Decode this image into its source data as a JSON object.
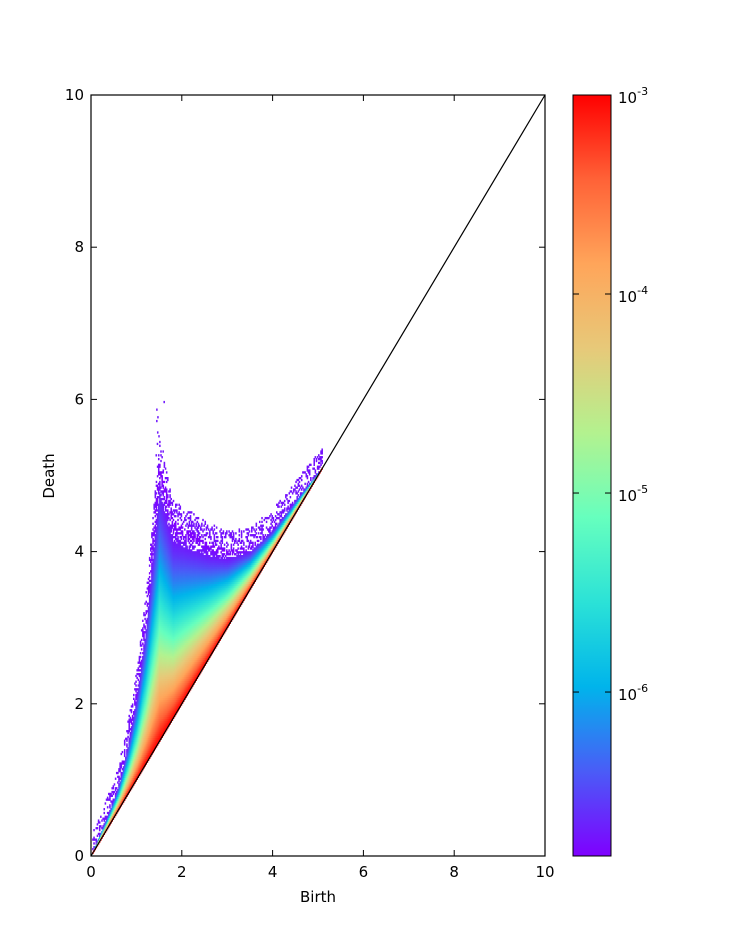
{
  "chart_data": {
    "type": "heatmap",
    "title": "",
    "xlabel": "Birth",
    "ylabel": "Death",
    "xlim": [
      0,
      10
    ],
    "ylim": [
      0,
      10
    ],
    "x_ticks": [
      {
        "value": 0,
        "label": "0"
      },
      {
        "value": 2,
        "label": "2"
      },
      {
        "value": 4,
        "label": "4"
      },
      {
        "value": 6,
        "label": "6"
      },
      {
        "value": 8,
        "label": "8"
      },
      {
        "value": 10,
        "label": "10"
      }
    ],
    "y_ticks": [
      {
        "value": 0,
        "label": "0"
      },
      {
        "value": 2,
        "label": "2"
      },
      {
        "value": 4,
        "label": "4"
      },
      {
        "value": 6,
        "label": "6"
      },
      {
        "value": 8,
        "label": "8"
      },
      {
        "value": 10,
        "label": "10"
      }
    ],
    "grid": false,
    "diagonal_line": {
      "from": [
        0,
        0
      ],
      "to": [
        10,
        10
      ],
      "color": "#000000"
    },
    "density_region": {
      "left_boundary": [
        [
          0.0,
          0.0
        ],
        [
          0.2,
          0.3
        ],
        [
          0.4,
          0.6
        ],
        [
          0.6,
          0.95
        ],
        [
          0.8,
          1.5
        ],
        [
          1.0,
          2.2
        ],
        [
          1.2,
          3.2
        ],
        [
          1.35,
          4.2
        ],
        [
          1.5,
          5.2
        ],
        [
          1.6,
          4.9
        ],
        [
          1.8,
          4.4
        ],
        [
          2.2,
          4.25
        ],
        [
          2.6,
          4.1
        ],
        [
          3.0,
          4.0
        ],
        [
          3.5,
          4.05
        ],
        [
          4.0,
          4.3
        ],
        [
          4.6,
          4.75
        ],
        [
          5.1,
          5.1
        ]
      ],
      "outlier_peak": [
        1.5,
        5.95
      ],
      "color_gradient_note_from_diagonal": [
        "#ff0000",
        "#ff7a3a",
        "#ffb35e",
        "#b3f28f",
        "#5effc0",
        "#1ee0d8",
        "#00b4eb",
        "#3f6cf5",
        "#7f00ff"
      ]
    },
    "colorbar": {
      "scale": "log",
      "range": [
        1.5e-07,
        0.001
      ],
      "ticks": [
        {
          "value": 0.001,
          "base": "10",
          "exponent": "-3"
        },
        {
          "value": 0.0001,
          "base": "10",
          "exponent": "-4"
        },
        {
          "value": 1e-05,
          "base": "10",
          "exponent": "-5"
        },
        {
          "value": 1e-06,
          "base": "10",
          "exponent": "-6"
        }
      ],
      "colormap": [
        "#7f00ff",
        "#4a5cf7",
        "#00b4eb",
        "#2be2d7",
        "#66ffbe",
        "#b3f28f",
        "#e7c979",
        "#ffa55a",
        "#ff6237",
        "#ff0000"
      ]
    }
  }
}
